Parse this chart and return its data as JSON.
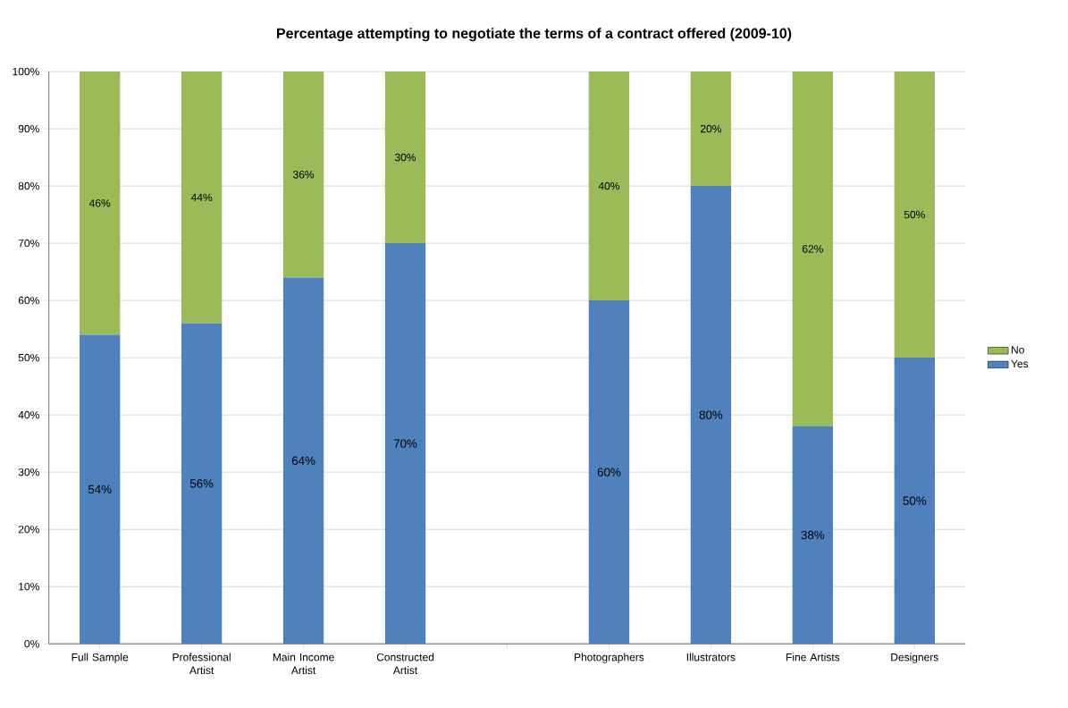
{
  "chart_data": {
    "type": "bar",
    "title": "Percentage attempting to negotiate the terms of a contract offered (2009-10)",
    "categories": [
      "Full Sample",
      "Professional Artist",
      "Main Income Artist",
      "Constructed Artist",
      null,
      "Photographers",
      "Illustrators",
      "Fine Artists",
      "Designers"
    ],
    "stacked": true,
    "series": [
      {
        "name": "Yes",
        "color": "#4f81bd",
        "values": [
          54,
          56,
          64,
          70,
          null,
          60,
          80,
          38,
          50
        ],
        "value_labels": [
          "54%",
          "56%",
          "64%",
          "70%",
          null,
          "60%",
          "80%",
          "38%",
          "50%"
        ]
      },
      {
        "name": "No",
        "color": "#9bbb59",
        "values": [
          46,
          44,
          36,
          30,
          null,
          40,
          20,
          62,
          50
        ],
        "value_labels": [
          "46%",
          "44%",
          "36%",
          "30%",
          null,
          "40%",
          "20%",
          "62%",
          "50%"
        ]
      }
    ],
    "ylim": [
      0,
      100
    ],
    "yticks": [
      {
        "value": 0,
        "label": "0%"
      },
      {
        "value": 10,
        "label": "10%"
      },
      {
        "value": 20,
        "label": "20%"
      },
      {
        "value": 30,
        "label": "30%"
      },
      {
        "value": 40,
        "label": "40%"
      },
      {
        "value": 50,
        "label": "50%"
      },
      {
        "value": 60,
        "label": "60%"
      },
      {
        "value": 70,
        "label": "70%"
      },
      {
        "value": 80,
        "label": "80%"
      },
      {
        "value": 90,
        "label": "90%"
      },
      {
        "value": 100,
        "label": "100%"
      }
    ],
    "grid": "y",
    "legend": "right"
  }
}
